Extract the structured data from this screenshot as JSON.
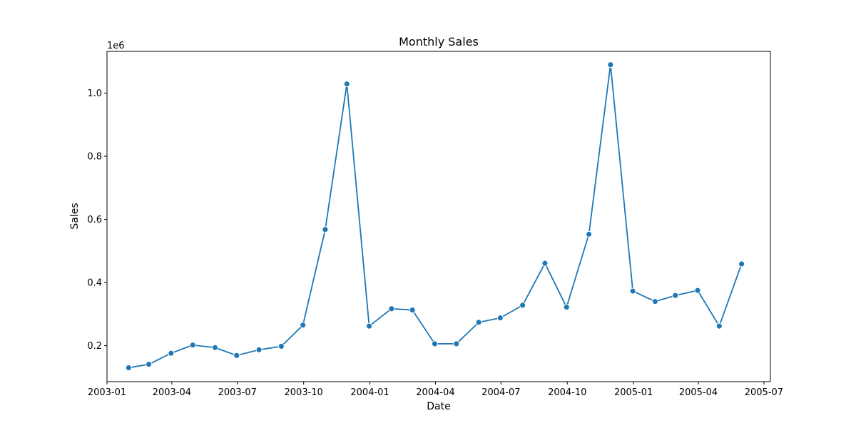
{
  "chart_data": {
    "type": "line",
    "title": "Monthly Sales",
    "xlabel": "Date",
    "ylabel": "Sales",
    "y_offset_label": "1e6",
    "line_color": "#1f77b4",
    "marker": "circle",
    "grid": false,
    "legend": "none",
    "xlim": [
      "2003-01-01",
      "2005-07-10"
    ],
    "ylim": [
      0.0861,
      1.1323
    ],
    "x_tick_labels": [
      "2003-01",
      "2003-04",
      "2003-07",
      "2003-10",
      "2004-01",
      "2004-04",
      "2004-07",
      "2004-10",
      "2005-01",
      "2005-04",
      "2005-07"
    ],
    "y_tick_values": [
      0.2,
      0.4,
      0.6,
      0.8,
      1.0
    ],
    "y_tick_labels": [
      "0.2",
      "0.4",
      "0.6",
      "0.8",
      "1.0"
    ],
    "series": [
      {
        "x": [
          "2003-01-31",
          "2003-02-28",
          "2003-03-31",
          "2003-04-30",
          "2003-05-31",
          "2003-06-30",
          "2003-07-31",
          "2003-08-31",
          "2003-09-30",
          "2003-10-31",
          "2003-11-30",
          "2003-12-31",
          "2004-01-31",
          "2004-02-29",
          "2004-03-31",
          "2004-04-30",
          "2004-05-31",
          "2004-06-30",
          "2004-07-31",
          "2004-08-31",
          "2004-09-30",
          "2004-10-31",
          "2004-11-30",
          "2004-12-31",
          "2005-01-31",
          "2005-02-28",
          "2005-03-31",
          "2005-04-30",
          "2005-05-31"
        ],
        "values": [
          0.13,
          0.141,
          0.176,
          0.202,
          0.194,
          0.169,
          0.187,
          0.198,
          0.265,
          0.568,
          1.029,
          0.262,
          0.317,
          0.313,
          0.206,
          0.206,
          0.274,
          0.288,
          0.328,
          0.461,
          0.322,
          0.553,
          1.09,
          0.373,
          0.34,
          0.359,
          0.375,
          0.262,
          0.459
        ]
      }
    ]
  }
}
